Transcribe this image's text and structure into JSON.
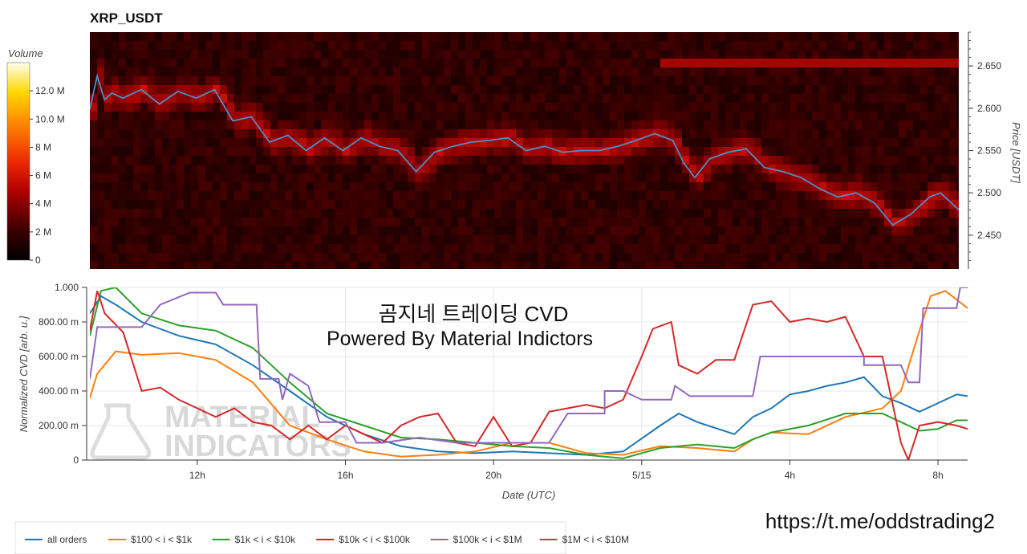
{
  "chart_data": [
    {
      "type": "heatmap",
      "title": "XRP_USDT",
      "ylabel": "Price [USDT]",
      "colorbar": {
        "label": "Volume",
        "ticks": [
          "12.0 M",
          "10.0 M",
          "8 M",
          "6 M",
          "4 M",
          "2 M",
          "0"
        ],
        "tick_values": [
          12,
          10,
          8,
          6,
          4,
          2,
          0
        ],
        "range": [
          0,
          14
        ]
      },
      "y_ticks": [
        "2.650",
        "2.600",
        "2.550",
        "2.500",
        "2.450"
      ],
      "y_tick_values": [
        2.65,
        2.6,
        2.55,
        2.5,
        2.45
      ],
      "ylim": [
        2.41,
        2.69
      ],
      "xlim_hours": [
        9.1,
        32.8
      ],
      "price_line_color": "#4a90c8",
      "price_series": [
        [
          9.1,
          2.599
        ],
        [
          9.3,
          2.638
        ],
        [
          9.5,
          2.61
        ],
        [
          9.7,
          2.618
        ],
        [
          10.0,
          2.612
        ],
        [
          10.5,
          2.622
        ],
        [
          11.0,
          2.605
        ],
        [
          11.5,
          2.62
        ],
        [
          12.0,
          2.612
        ],
        [
          12.5,
          2.622
        ],
        [
          13.0,
          2.585
        ],
        [
          13.5,
          2.59
        ],
        [
          14.0,
          2.56
        ],
        [
          14.5,
          2.568
        ],
        [
          15.0,
          2.55
        ],
        [
          15.5,
          2.565
        ],
        [
          16.0,
          2.55
        ],
        [
          16.5,
          2.565
        ],
        [
          17.0,
          2.555
        ],
        [
          17.5,
          2.55
        ],
        [
          18.0,
          2.525
        ],
        [
          18.5,
          2.548
        ],
        [
          19.0,
          2.555
        ],
        [
          19.5,
          2.56
        ],
        [
          20.0,
          2.562
        ],
        [
          20.5,
          2.565
        ],
        [
          21.0,
          2.55
        ],
        [
          21.5,
          2.555
        ],
        [
          22.0,
          2.548
        ],
        [
          22.5,
          2.55
        ],
        [
          23.0,
          2.55
        ],
        [
          23.5,
          2.555
        ],
        [
          24.0,
          2.562
        ],
        [
          24.5,
          2.57
        ],
        [
          25.0,
          2.562
        ],
        [
          25.3,
          2.535
        ],
        [
          25.6,
          2.518
        ],
        [
          26.0,
          2.54
        ],
        [
          26.5,
          2.548
        ],
        [
          27.0,
          2.552
        ],
        [
          27.5,
          2.53
        ],
        [
          28.0,
          2.525
        ],
        [
          28.5,
          2.518
        ],
        [
          29.0,
          2.505
        ],
        [
          29.5,
          2.495
        ],
        [
          30.0,
          2.5
        ],
        [
          30.5,
          2.488
        ],
        [
          31.0,
          2.462
        ],
        [
          31.5,
          2.475
        ],
        [
          32.0,
          2.495
        ],
        [
          32.3,
          2.5
        ],
        [
          32.8,
          2.48
        ]
      ],
      "hot_band": {
        "price": 2.65,
        "from_hour": 24.5,
        "to_hour": 32.8
      }
    },
    {
      "type": "line",
      "ylabel": "Normalized CVD [arb. u.]",
      "xlabel": "Date (UTC)",
      "ylim": [
        0,
        1
      ],
      "y_ticks": [
        "0",
        "200.00 m",
        "400.00 m",
        "600.00 m",
        "800.00 m",
        "1.000"
      ],
      "y_tick_values": [
        0,
        0.2,
        0.4,
        0.6,
        0.8,
        1.0
      ],
      "xlim_hours": [
        9.1,
        32.8
      ],
      "x_ticks": [
        "12h",
        "16h",
        "20h",
        "5/15",
        "4h",
        "8h"
      ],
      "x_tick_hours": [
        12,
        16,
        20,
        24,
        28,
        32
      ],
      "series": [
        {
          "name": "all orders",
          "color": "#1f77b4",
          "points": [
            [
              9.1,
              0.85
            ],
            [
              9.4,
              0.95
            ],
            [
              9.8,
              0.9
            ],
            [
              10.5,
              0.8
            ],
            [
              11.5,
              0.72
            ],
            [
              12.5,
              0.67
            ],
            [
              13.5,
              0.55
            ],
            [
              14.5,
              0.4
            ],
            [
              15.5,
              0.25
            ],
            [
              16.5,
              0.15
            ],
            [
              17.5,
              0.08
            ],
            [
              18.5,
              0.05
            ],
            [
              19.5,
              0.04
            ],
            [
              20.5,
              0.05
            ],
            [
              21.5,
              0.04
            ],
            [
              22.5,
              0.03
            ],
            [
              23.5,
              0.05
            ],
            [
              24.5,
              0.2
            ],
            [
              25.0,
              0.27
            ],
            [
              25.5,
              0.22
            ],
            [
              26.5,
              0.15
            ],
            [
              27.0,
              0.25
            ],
            [
              27.5,
              0.3
            ],
            [
              28.0,
              0.38
            ],
            [
              28.5,
              0.4
            ],
            [
              29.0,
              0.43
            ],
            [
              29.5,
              0.45
            ],
            [
              30.0,
              0.48
            ],
            [
              30.5,
              0.37
            ],
            [
              31.0,
              0.33
            ],
            [
              31.5,
              0.28
            ],
            [
              32.0,
              0.33
            ],
            [
              32.5,
              0.38
            ],
            [
              32.8,
              0.37
            ]
          ]
        },
        {
          "name": "$100 < i < $1k",
          "color": "#ff7f0e",
          "points": [
            [
              9.1,
              0.36
            ],
            [
              9.3,
              0.5
            ],
            [
              9.8,
              0.63
            ],
            [
              10.5,
              0.61
            ],
            [
              11.5,
              0.62
            ],
            [
              12.5,
              0.58
            ],
            [
              13.5,
              0.45
            ],
            [
              14.5,
              0.2
            ],
            [
              15.5,
              0.12
            ],
            [
              16.5,
              0.05
            ],
            [
              17.5,
              0.02
            ],
            [
              18.5,
              0.03
            ],
            [
              19.5,
              0.05
            ],
            [
              20.5,
              0.1
            ],
            [
              21.5,
              0.1
            ],
            [
              22.5,
              0.04
            ],
            [
              23.5,
              0.03
            ],
            [
              24.5,
              0.08
            ],
            [
              25.5,
              0.07
            ],
            [
              26.5,
              0.05
            ],
            [
              27.0,
              0.12
            ],
            [
              27.5,
              0.16
            ],
            [
              28.5,
              0.15
            ],
            [
              29.5,
              0.25
            ],
            [
              30.5,
              0.3
            ],
            [
              31.0,
              0.4
            ],
            [
              31.5,
              0.75
            ],
            [
              31.8,
              0.95
            ],
            [
              32.2,
              0.98
            ],
            [
              32.8,
              0.88
            ]
          ]
        },
        {
          "name": "$1k < i < $10k",
          "color": "#2ca02c",
          "points": [
            [
              9.1,
              0.72
            ],
            [
              9.4,
              0.98
            ],
            [
              9.8,
              1.0
            ],
            [
              10.5,
              0.85
            ],
            [
              11.5,
              0.78
            ],
            [
              12.5,
              0.75
            ],
            [
              13.5,
              0.65
            ],
            [
              14.5,
              0.45
            ],
            [
              15.5,
              0.27
            ],
            [
              16.5,
              0.2
            ],
            [
              17.5,
              0.13
            ],
            [
              18.5,
              0.12
            ],
            [
              19.5,
              0.1
            ],
            [
              20.5,
              0.08
            ],
            [
              21.5,
              0.07
            ],
            [
              22.5,
              0.03
            ],
            [
              23.5,
              0.01
            ],
            [
              24.5,
              0.07
            ],
            [
              25.5,
              0.09
            ],
            [
              26.5,
              0.07
            ],
            [
              27.0,
              0.12
            ],
            [
              27.5,
              0.16
            ],
            [
              28.5,
              0.2
            ],
            [
              29.5,
              0.27
            ],
            [
              30.5,
              0.27
            ],
            [
              31.0,
              0.22
            ],
            [
              31.5,
              0.17
            ],
            [
              32.0,
              0.18
            ],
            [
              32.5,
              0.23
            ],
            [
              32.8,
              0.23
            ]
          ]
        },
        {
          "name": "$10k < i < $100k",
          "color": "#d62728",
          "points": [
            [
              9.1,
              0.75
            ],
            [
              9.3,
              0.98
            ],
            [
              9.5,
              0.85
            ],
            [
              10.0,
              0.74
            ],
            [
              10.5,
              0.4
            ],
            [
              11.0,
              0.42
            ],
            [
              11.5,
              0.35
            ],
            [
              12.0,
              0.3
            ],
            [
              12.5,
              0.25
            ],
            [
              13.0,
              0.3
            ],
            [
              13.5,
              0.22
            ],
            [
              14.0,
              0.2
            ],
            [
              14.5,
              0.12
            ],
            [
              15.0,
              0.2
            ],
            [
              15.5,
              0.12
            ],
            [
              16.0,
              0.2
            ],
            [
              16.5,
              0.15
            ],
            [
              17.0,
              0.1
            ],
            [
              17.5,
              0.2
            ],
            [
              18.0,
              0.25
            ],
            [
              18.5,
              0.27
            ],
            [
              19.0,
              0.1
            ],
            [
              19.5,
              0.08
            ],
            [
              20.0,
              0.25
            ],
            [
              20.5,
              0.08
            ],
            [
              21.0,
              0.1
            ],
            [
              21.5,
              0.28
            ],
            [
              22.0,
              0.3
            ],
            [
              22.5,
              0.32
            ],
            [
              23.0,
              0.3
            ],
            [
              23.5,
              0.35
            ],
            [
              24.0,
              0.6
            ],
            [
              24.3,
              0.76
            ],
            [
              24.8,
              0.8
            ],
            [
              25.0,
              0.55
            ],
            [
              25.5,
              0.5
            ],
            [
              26.0,
              0.58
            ],
            [
              26.5,
              0.58
            ],
            [
              27.0,
              0.9
            ],
            [
              27.5,
              0.92
            ],
            [
              28.0,
              0.8
            ],
            [
              28.5,
              0.82
            ],
            [
              29.0,
              0.8
            ],
            [
              29.5,
              0.83
            ],
            [
              30.0,
              0.6
            ],
            [
              30.5,
              0.6
            ],
            [
              31.0,
              0.1
            ],
            [
              31.2,
              0.0
            ],
            [
              31.5,
              0.2
            ],
            [
              32.0,
              0.22
            ],
            [
              32.5,
              0.2
            ],
            [
              32.8,
              0.18
            ]
          ]
        },
        {
          "name": "$100k < i < $1M",
          "color": "#9467bd",
          "points": [
            [
              9.1,
              0.47
            ],
            [
              9.3,
              0.77
            ],
            [
              10.5,
              0.77
            ],
            [
              11.0,
              0.9
            ],
            [
              11.8,
              0.97
            ],
            [
              12.5,
              0.97
            ],
            [
              12.7,
              0.9
            ],
            [
              13.6,
              0.9
            ],
            [
              13.7,
              0.47
            ],
            [
              14.2,
              0.47
            ],
            [
              14.3,
              0.35
            ],
            [
              14.5,
              0.5
            ],
            [
              15.0,
              0.43
            ],
            [
              15.3,
              0.22
            ],
            [
              16.0,
              0.22
            ],
            [
              16.3,
              0.1
            ],
            [
              17.0,
              0.1
            ],
            [
              18.0,
              0.13
            ],
            [
              19.0,
              0.1
            ],
            [
              20.0,
              0.1
            ],
            [
              21.0,
              0.1
            ],
            [
              21.5,
              0.1
            ],
            [
              22.0,
              0.27
            ],
            [
              23.0,
              0.27
            ],
            [
              23.0,
              0.4
            ],
            [
              23.5,
              0.4
            ],
            [
              24.0,
              0.35
            ],
            [
              24.8,
              0.35
            ],
            [
              24.9,
              0.43
            ],
            [
              25.3,
              0.37
            ],
            [
              26.5,
              0.37
            ],
            [
              27.0,
              0.37
            ],
            [
              27.2,
              0.6
            ],
            [
              28.5,
              0.6
            ],
            [
              29.5,
              0.6
            ],
            [
              30.0,
              0.6
            ],
            [
              30.0,
              0.55
            ],
            [
              31.0,
              0.55
            ],
            [
              31.2,
              0.45
            ],
            [
              31.5,
              0.45
            ],
            [
              31.6,
              0.88
            ],
            [
              32.5,
              0.88
            ],
            [
              32.6,
              1.0
            ],
            [
              32.8,
              1.0
            ]
          ]
        },
        {
          "name": "$1M < i < $10M",
          "color": "#8c564b",
          "points": []
        }
      ]
    }
  ],
  "overlay": {
    "line1": "곰지네 트레이딩 CVD",
    "line2": "Powered By Material Indictors"
  },
  "watermark": {
    "line1": "MATERIAL",
    "line2": "INDICATORS"
  },
  "url_text": "https://t.me/oddstrading2",
  "colors": {
    "heatmap_base": "#2b0000",
    "heatmap_hot": "#b80000",
    "grid": "#e8e8e8"
  }
}
